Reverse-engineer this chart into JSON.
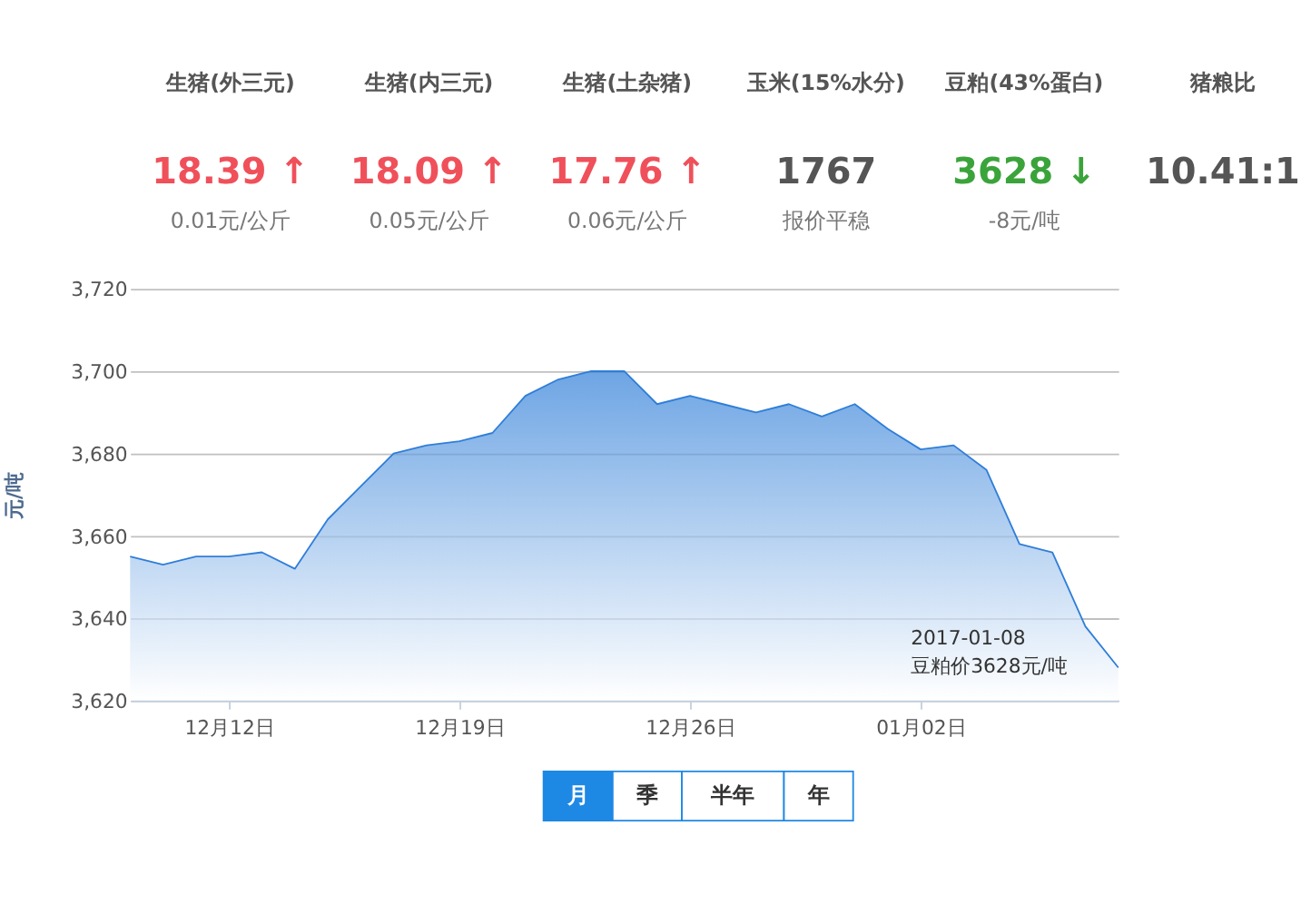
{
  "chart_data": [
    {
      "type": "other",
      "annotations": [
        "生猪(外三元)\n18.39 ↑\n0.01元/公斤",
        "生猪(内三元)\n18.09 ↑\n0.05元/公斤",
        "生猪(土杂猪)\n17.76 ↑\n0.06元/公斤",
        "玉米(15%水分)\n1767\n报价平稳",
        "豆粕(43%蛋白)\n3628 ↓\n-8元/吨",
        "猪粮比\n10.41:1"
      ],
      "colors": [
        "#f0505a",
        "#f0505a",
        "#f0505a",
        "#555555",
        "#3aa43a",
        "#555555"
      ]
    },
    {
      "type": "area",
      "ylabel": "元/吨",
      "x": [
        "2016-12-09",
        "2016-12-10",
        "2016-12-11",
        "2016-12-12",
        "2016-12-13",
        "2016-12-14",
        "2016-12-15",
        "2016-12-16",
        "2016-12-17",
        "2016-12-18",
        "2016-12-19",
        "2016-12-20",
        "2016-12-21",
        "2016-12-22",
        "2016-12-23",
        "2016-12-24",
        "2016-12-25",
        "2016-12-26",
        "2016-12-27",
        "2016-12-28",
        "2016-12-29",
        "2016-12-30",
        "2016-12-31",
        "2017-01-01",
        "2017-01-02",
        "2017-01-03",
        "2017-01-04",
        "2017-01-05",
        "2017-01-06",
        "2017-01-07",
        "2017-01-08"
      ],
      "series": [
        {
          "color": "#2f7ed8",
          "values": [
            3655,
            3653,
            3655,
            3655,
            3656,
            3652,
            3664,
            3672,
            3680,
            3682,
            3683,
            3685,
            3694,
            3698,
            3700,
            3700,
            3692,
            3694,
            3692,
            3690,
            3692,
            3689,
            3692,
            3686,
            3681,
            3682,
            3676,
            3658,
            3656,
            3638,
            3628
          ]
        }
      ],
      "xlim": [
        "2016-12-09",
        "2017-01-08"
      ],
      "xticks": [
        {
          "value": "2016-12-12",
          "label": "12月12日"
        },
        {
          "value": "2016-12-19",
          "label": "12月19日"
        },
        {
          "value": "2016-12-26",
          "label": "12月26日"
        },
        {
          "value": "2017-01-02",
          "label": "01月02日"
        }
      ],
      "ylim": [
        3620,
        3720
      ],
      "yticks": [
        {
          "value": 3620,
          "label": "3,620"
        },
        {
          "value": 3640,
          "label": "3,640"
        },
        {
          "value": 3660,
          "label": "3,660"
        },
        {
          "value": 3680,
          "label": "3,680"
        },
        {
          "value": 3700,
          "label": "3,700"
        },
        {
          "value": 3720,
          "label": "3,720"
        }
      ],
      "grid": "y",
      "marker": "none",
      "legend": false,
      "annotations": [
        {
          "text": "2017-01-08\n豆粕价3628元/吨",
          "x": "2017-01-08",
          "y": 3628
        },
        "月",
        "季",
        "半年",
        "年"
      ]
    }
  ]
}
